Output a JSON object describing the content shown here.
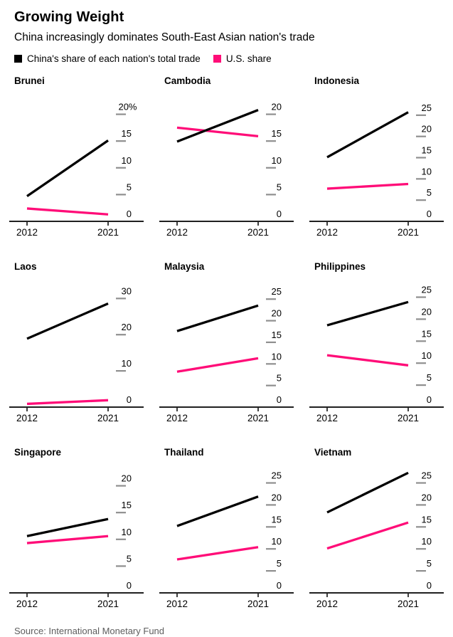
{
  "header": {
    "title": "Growing Weight",
    "subtitle": "China increasingly dominates South-East Asian nation's trade",
    "legend": [
      {
        "label": "China's share of each nation's total trade",
        "color": "#000000"
      },
      {
        "label": "U.S. share",
        "color": "#ff0d78"
      }
    ]
  },
  "colors": {
    "china_line": "#000000",
    "us_line": "#ff0d78",
    "tick_dash": "#8f8f8f",
    "axis": "#000000",
    "background": "#ffffff"
  },
  "footer": {
    "source": "Source: International Monetary Fund"
  },
  "chart_data": [
    {
      "type": "line",
      "title": "Brunei",
      "x": [
        2012,
        2021
      ],
      "x_tick_labels": [
        "2012",
        "2021"
      ],
      "ylim": [
        0,
        23
      ],
      "yticks": [
        0,
        5,
        10,
        15,
        20
      ],
      "ytick_labels": [
        "0",
        "5",
        "10",
        "15",
        "20%"
      ],
      "series": [
        {
          "name": "China's share of total trade",
          "color": "#000000",
          "values": [
            4.7,
            15.1
          ]
        },
        {
          "name": "U.S. share",
          "color": "#ff0d78",
          "values": [
            2.4,
            1.3
          ]
        }
      ]
    },
    {
      "type": "line",
      "title": "Cambodia",
      "x": [
        2012,
        2021
      ],
      "x_tick_labels": [
        "2012",
        "2021"
      ],
      "ylim": [
        0,
        23
      ],
      "yticks": [
        0,
        5,
        10,
        15,
        20
      ],
      "ytick_labels": [
        "0",
        "5",
        "10",
        "15",
        "20"
      ],
      "series": [
        {
          "name": "China's share of total trade",
          "color": "#000000",
          "values": [
            14.9,
            20.8
          ]
        },
        {
          "name": "U.S. share",
          "color": "#ff0d78",
          "values": [
            17.5,
            15.9
          ]
        }
      ]
    },
    {
      "type": "line",
      "title": "Indonesia",
      "x": [
        2012,
        2021
      ],
      "x_tick_labels": [
        "2012",
        "2021"
      ],
      "ylim": [
        0,
        29
      ],
      "yticks": [
        0,
        5,
        10,
        15,
        20,
        25
      ],
      "ytick_labels": [
        "0",
        "5",
        "10",
        "15",
        "20",
        "25"
      ],
      "series": [
        {
          "name": "China's share of total trade",
          "color": "#000000",
          "values": [
            15.1,
            25.7
          ]
        },
        {
          "name": "U.S. share",
          "color": "#ff0d78",
          "values": [
            7.7,
            8.8
          ]
        }
      ]
    },
    {
      "type": "line",
      "title": "Laos",
      "x": [
        2012,
        2021
      ],
      "x_tick_labels": [
        "2012",
        "2021"
      ],
      "ylim": [
        0,
        34
      ],
      "yticks": [
        0,
        10,
        20,
        30
      ],
      "ytick_labels": [
        "0",
        "10",
        "20",
        "30"
      ],
      "series": [
        {
          "name": "China's share of total trade",
          "color": "#000000",
          "values": [
            18.9,
            28.6
          ]
        },
        {
          "name": "U.S. share",
          "color": "#ff0d78",
          "values": [
            0.9,
            1.9
          ]
        }
      ]
    },
    {
      "type": "line",
      "title": "Malaysia",
      "x": [
        2012,
        2021
      ],
      "x_tick_labels": [
        "2012",
        "2021"
      ],
      "ylim": [
        0,
        28.5
      ],
      "yticks": [
        0,
        5,
        10,
        15,
        20,
        25
      ],
      "ytick_labels": [
        "0",
        "5",
        "10",
        "15",
        "20",
        "25"
      ],
      "series": [
        {
          "name": "China's share of total trade",
          "color": "#000000",
          "values": [
            17.6,
            23.5
          ]
        },
        {
          "name": "U.S. share",
          "color": "#ff0d78",
          "values": [
            8.2,
            11.3
          ]
        }
      ]
    },
    {
      "type": "line",
      "title": "Philippines",
      "x": [
        2012,
        2021
      ],
      "x_tick_labels": [
        "2012",
        "2021"
      ],
      "ylim": [
        0,
        28
      ],
      "yticks": [
        0,
        5,
        10,
        15,
        20,
        25
      ],
      "ytick_labels": [
        "0",
        "5",
        "10",
        "15",
        "20",
        "25"
      ],
      "series": [
        {
          "name": "China's share of total trade",
          "color": "#000000",
          "values": [
            18.6,
            23.9
          ]
        },
        {
          "name": "U.S. share",
          "color": "#ff0d78",
          "values": [
            11.8,
            9.5
          ]
        }
      ]
    },
    {
      "type": "line",
      "title": "Singapore",
      "x": [
        2012,
        2021
      ],
      "x_tick_labels": [
        "2012",
        "2021"
      ],
      "ylim": [
        0,
        23
      ],
      "yticks": [
        0,
        5,
        10,
        15,
        20
      ],
      "ytick_labels": [
        "0",
        "5",
        "10",
        "15",
        "20"
      ],
      "series": [
        {
          "name": "China's share of total trade",
          "color": "#000000",
          "values": [
            10.6,
            13.8
          ]
        },
        {
          "name": "U.S. share",
          "color": "#ff0d78",
          "values": [
            9.3,
            10.6
          ]
        }
      ]
    },
    {
      "type": "line",
      "title": "Thailand",
      "x": [
        2012,
        2021
      ],
      "x_tick_labels": [
        "2012",
        "2021"
      ],
      "ylim": [
        0,
        28
      ],
      "yticks": [
        0,
        5,
        10,
        15,
        20,
        25
      ],
      "ytick_labels": [
        "0",
        "5",
        "10",
        "15",
        "20",
        "25"
      ],
      "series": [
        {
          "name": "China's share of total trade",
          "color": "#000000",
          "values": [
            15.2,
            21.9
          ]
        },
        {
          "name": "U.S. share",
          "color": "#ff0d78",
          "values": [
            7.6,
            10.4
          ]
        }
      ]
    },
    {
      "type": "line",
      "title": "Vietnam",
      "x": [
        2012,
        2021
      ],
      "x_tick_labels": [
        "2012",
        "2021"
      ],
      "ylim": [
        0,
        28
      ],
      "yticks": [
        0,
        5,
        10,
        15,
        20,
        25
      ],
      "ytick_labels": [
        "0",
        "5",
        "10",
        "15",
        "20",
        "25"
      ],
      "series": [
        {
          "name": "China's share of total trade",
          "color": "#000000",
          "values": [
            18.3,
            27.3
          ]
        },
        {
          "name": "U.S. share",
          "color": "#ff0d78",
          "values": [
            10.1,
            16.0
          ]
        }
      ]
    }
  ]
}
